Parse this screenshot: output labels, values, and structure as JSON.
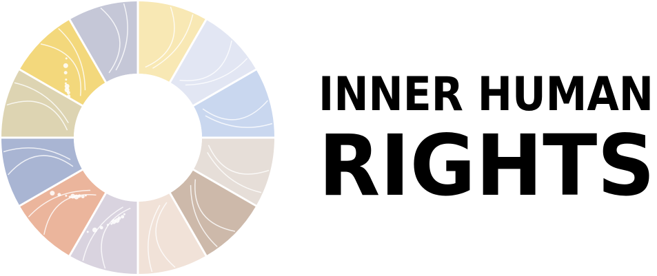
{
  "logo": {
    "line1": "INNER HUMAN",
    "line2": "RIGHTS"
  }
}
